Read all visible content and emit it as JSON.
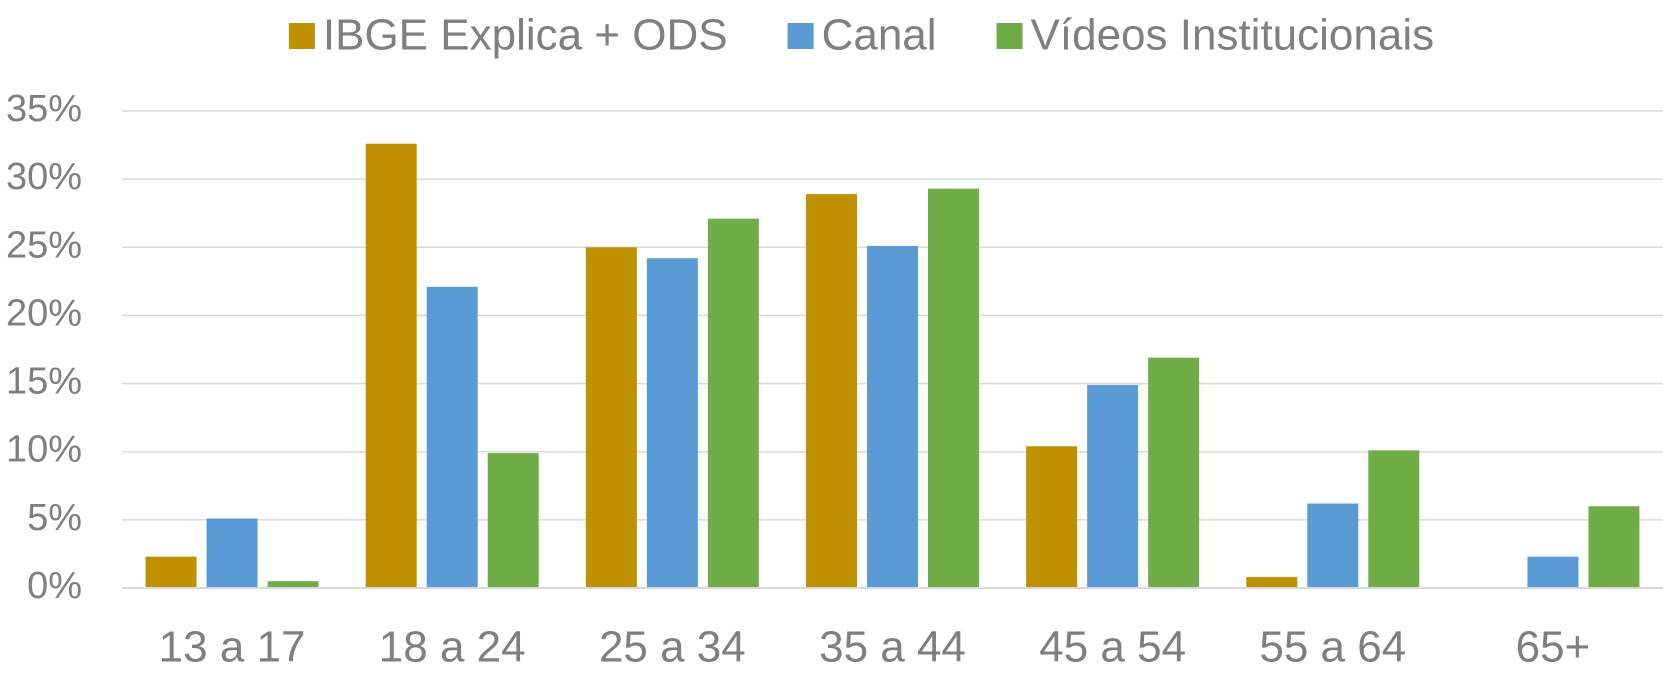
{
  "chart_data": {
    "type": "bar",
    "categories": [
      "13 a 17",
      "18 a 24",
      "25 a 34",
      "35 a 44",
      "45 a 54",
      "55 a 64",
      "65+"
    ],
    "series": [
      {
        "name": "IBGE Explica + ODS",
        "color": "#bf9000",
        "values": [
          2.3,
          32.6,
          25.0,
          28.9,
          10.4,
          0.8,
          0
        ]
      },
      {
        "name": "Canal",
        "color": "#5b9bd5",
        "values": [
          5.1,
          22.1,
          24.2,
          25.1,
          14.9,
          6.2,
          2.3
        ]
      },
      {
        "name": "Vídeos Institucionais",
        "color": "#70ad47",
        "values": [
          0.5,
          9.9,
          27.1,
          29.3,
          16.9,
          10.1,
          6.0
        ]
      }
    ],
    "ylim": [
      0,
      35
    ],
    "yticks": [
      {
        "value": 0,
        "label": "0%"
      },
      {
        "value": 5,
        "label": "5%"
      },
      {
        "value": 10,
        "label": "10%"
      },
      {
        "value": 15,
        "label": "15%"
      },
      {
        "value": 20,
        "label": "20%"
      },
      {
        "value": 25,
        "label": "25%"
      },
      {
        "value": 30,
        "label": "30%"
      },
      {
        "value": 35,
        "label": "35%"
      }
    ],
    "grid": true,
    "legend": "top"
  }
}
